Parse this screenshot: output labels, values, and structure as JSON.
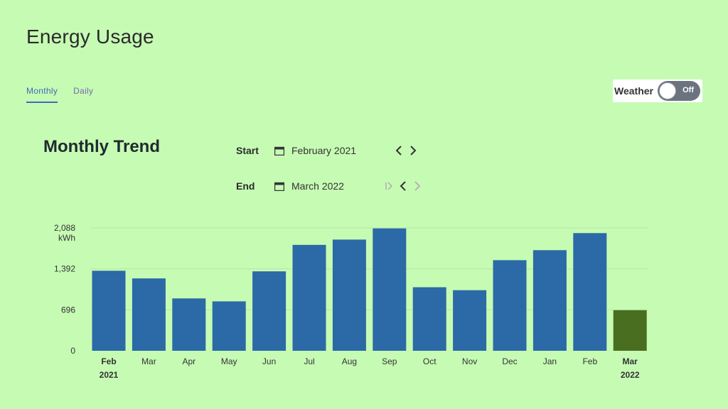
{
  "header": {
    "title": "Energy Usage"
  },
  "tabs": [
    {
      "label": "Monthly",
      "active": true
    },
    {
      "label": "Daily",
      "active": false
    }
  ],
  "weather": {
    "label": "Weather",
    "state": "Off"
  },
  "section": {
    "title": "Monthly Trend"
  },
  "range": {
    "start_label": "Start",
    "start_value": "February 2021",
    "end_label": "End",
    "end_value": "March 2022"
  },
  "colors": {
    "background": "#c6fbb4",
    "bar": "#2b6aa6",
    "bar_current": "#4a6e1f",
    "accent": "#3f6bb8"
  },
  "icons": [
    "calendar-icon",
    "chevron-left-icon",
    "chevron-right-icon",
    "skip-to-end-icon"
  ],
  "chart_data": {
    "type": "bar",
    "title": "Monthly Trend",
    "ylabel": "kWh",
    "ylim": [
      0,
      2088
    ],
    "yticks": [
      "0",
      "696",
      "1,392",
      "2,088"
    ],
    "categories": [
      "Feb",
      "Mar",
      "Apr",
      "May",
      "Jun",
      "Jul",
      "Aug",
      "Sep",
      "Oct",
      "Nov",
      "Dec",
      "Jan",
      "Feb",
      "Mar"
    ],
    "category_years": [
      "2021",
      "",
      "",
      "",
      "",
      "",
      "",
      "",
      "",
      "",
      "",
      "",
      "",
      "2022"
    ],
    "values": [
      1360,
      1230,
      890,
      840,
      1350,
      1800,
      1890,
      2080,
      1080,
      1030,
      1540,
      1710,
      2000,
      690
    ],
    "highlight_index": 13,
    "grid": true,
    "legend": "none"
  }
}
